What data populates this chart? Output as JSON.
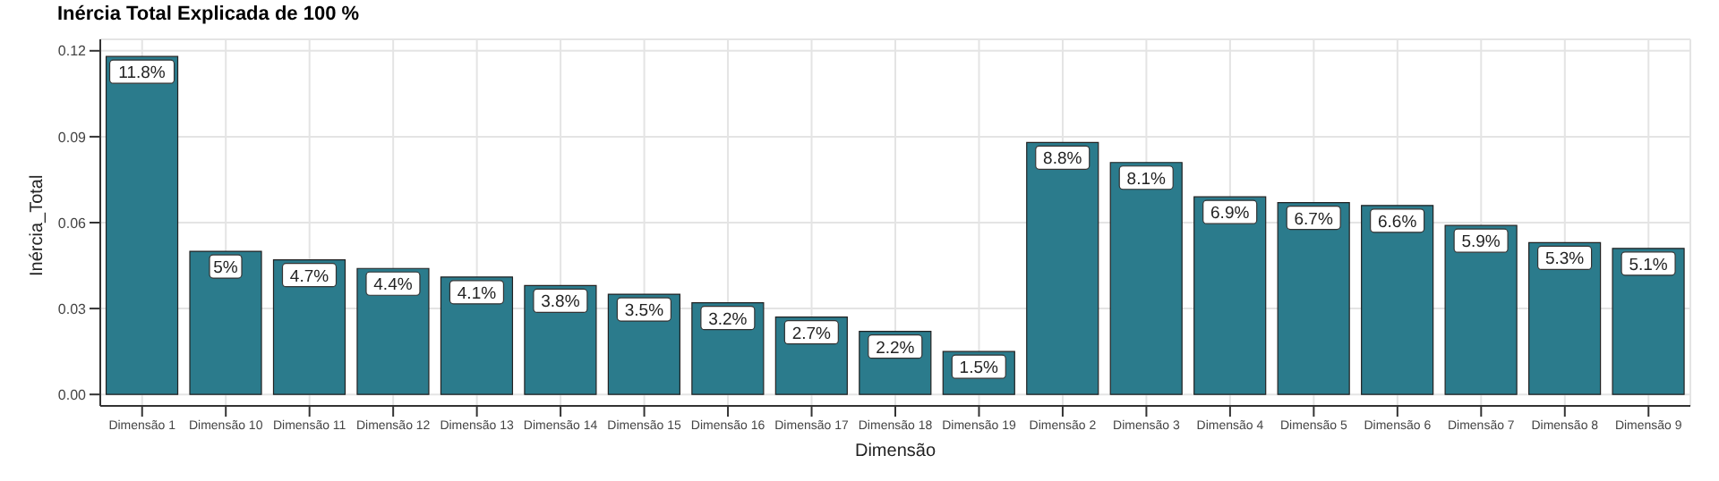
{
  "chart_data": {
    "type": "bar",
    "title": "Inércia Total Explicada de 100 %",
    "xlabel": "Dimensão",
    "ylabel": "Inércia_Total",
    "categories": [
      "Dimensão 1",
      "Dimensão 10",
      "Dimensão 11",
      "Dimensão 12",
      "Dimensão 13",
      "Dimensão 14",
      "Dimensão 15",
      "Dimensão 16",
      "Dimensão 17",
      "Dimensão 18",
      "Dimensão 19",
      "Dimensão 2",
      "Dimensão 3",
      "Dimensão 4",
      "Dimensão 5",
      "Dimensão 6",
      "Dimensão 7",
      "Dimensão 8",
      "Dimensão 9"
    ],
    "values": [
      0.118,
      0.05,
      0.047,
      0.044,
      0.041,
      0.038,
      0.035,
      0.032,
      0.027,
      0.022,
      0.015,
      0.088,
      0.081,
      0.069,
      0.067,
      0.066,
      0.059,
      0.053,
      0.051
    ],
    "value_labels": [
      "11.8%",
      "5%",
      "4.7%",
      "4.4%",
      "4.1%",
      "3.8%",
      "3.5%",
      "3.2%",
      "2.7%",
      "2.2%",
      "1.5%",
      "8.8%",
      "8.1%",
      "6.9%",
      "6.7%",
      "6.6%",
      "5.9%",
      "5.3%",
      "5.1%"
    ],
    "color": "#2b7b8c",
    "ylim": [
      -0.004,
      0.124
    ],
    "yticks": [
      {
        "value": 0,
        "label": "0.00"
      },
      {
        "value": 0.03,
        "label": "0.03"
      },
      {
        "value": 0.06,
        "label": "0.06"
      },
      {
        "value": 0.09,
        "label": "0.09"
      },
      {
        "value": 0.12,
        "label": "0.12"
      }
    ],
    "grid": true
  }
}
